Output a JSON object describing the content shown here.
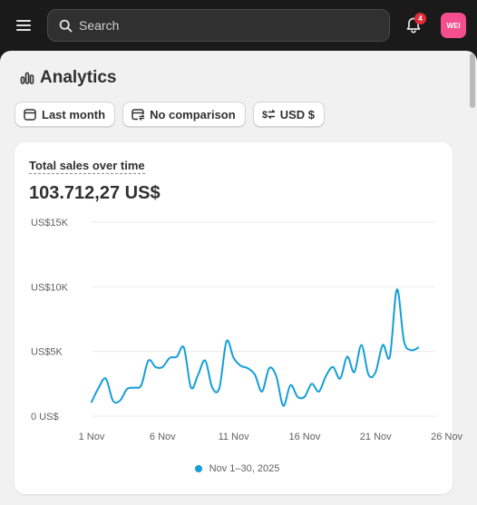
{
  "topbar": {
    "search_placeholder": "Search",
    "notification_count": "4",
    "avatar_initials": "WEI"
  },
  "page": {
    "title": "Analytics"
  },
  "filters": {
    "date_range": "Last month",
    "comparison": "No comparison",
    "currency": "USD $"
  },
  "card": {
    "title": "Total sales over time",
    "total": "103.712,27 US$"
  },
  "colors": {
    "series": "#149ed8",
    "avatar": "#f54e8e",
    "badge": "#e22c38"
  },
  "chart_data": {
    "type": "line",
    "ylim": [
      0,
      15000
    ],
    "y_ticks": [
      {
        "value": 15000,
        "label": "US$15K"
      },
      {
        "value": 10000,
        "label": "US$10K"
      },
      {
        "value": 5000,
        "label": "US$5K"
      },
      {
        "value": 0,
        "label": "0 US$"
      }
    ],
    "x_tick_labels": [
      {
        "day": 1,
        "label": "1 Nov"
      },
      {
        "day": 6,
        "label": "6 Nov"
      },
      {
        "day": 11,
        "label": "11 Nov"
      },
      {
        "day": 16,
        "label": "16 Nov"
      },
      {
        "day": 21,
        "label": "21 Nov"
      },
      {
        "day": 26,
        "label": "26 Nov"
      }
    ],
    "grid": true,
    "series": [
      {
        "name": "Nov 1–30, 2025",
        "points": [
          {
            "x": 1,
            "y": 1100
          },
          {
            "x": 1.5,
            "y": 2200
          },
          {
            "x": 2,
            "y": 2900
          },
          {
            "x": 2.5,
            "y": 1200
          },
          {
            "x": 3,
            "y": 1200
          },
          {
            "x": 3.5,
            "y": 2100
          },
          {
            "x": 4,
            "y": 2200
          },
          {
            "x": 4.5,
            "y": 2400
          },
          {
            "x": 5,
            "y": 4300
          },
          {
            "x": 5.5,
            "y": 3800
          },
          {
            "x": 6,
            "y": 3800
          },
          {
            "x": 6.5,
            "y": 4500
          },
          {
            "x": 7,
            "y": 4600
          },
          {
            "x": 7.5,
            "y": 5300
          },
          {
            "x": 8,
            "y": 2200
          },
          {
            "x": 8.5,
            "y": 3200
          },
          {
            "x": 9,
            "y": 4300
          },
          {
            "x": 9.5,
            "y": 2200
          },
          {
            "x": 10,
            "y": 2200
          },
          {
            "x": 10.5,
            "y": 5800
          },
          {
            "x": 11,
            "y": 4500
          },
          {
            "x": 11.5,
            "y": 3900
          },
          {
            "x": 12,
            "y": 3700
          },
          {
            "x": 12.5,
            "y": 3200
          },
          {
            "x": 13,
            "y": 1900
          },
          {
            "x": 13.5,
            "y": 3700
          },
          {
            "x": 14,
            "y": 3100
          },
          {
            "x": 14.5,
            "y": 800
          },
          {
            "x": 15,
            "y": 2400
          },
          {
            "x": 15.5,
            "y": 1500
          },
          {
            "x": 16,
            "y": 1500
          },
          {
            "x": 16.5,
            "y": 2500
          },
          {
            "x": 17,
            "y": 1900
          },
          {
            "x": 17.5,
            "y": 3100
          },
          {
            "x": 18,
            "y": 3800
          },
          {
            "x": 18.5,
            "y": 2900
          },
          {
            "x": 19,
            "y": 4600
          },
          {
            "x": 19.5,
            "y": 3400
          },
          {
            "x": 20,
            "y": 5500
          },
          {
            "x": 20.5,
            "y": 3200
          },
          {
            "x": 21,
            "y": 3400
          },
          {
            "x": 21.5,
            "y": 5500
          },
          {
            "x": 22,
            "y": 4600
          },
          {
            "x": 22.5,
            "y": 9800
          },
          {
            "x": 23,
            "y": 5800
          },
          {
            "x": 23.5,
            "y": 5100
          },
          {
            "x": 24,
            "y": 5300
          }
        ]
      }
    ]
  }
}
